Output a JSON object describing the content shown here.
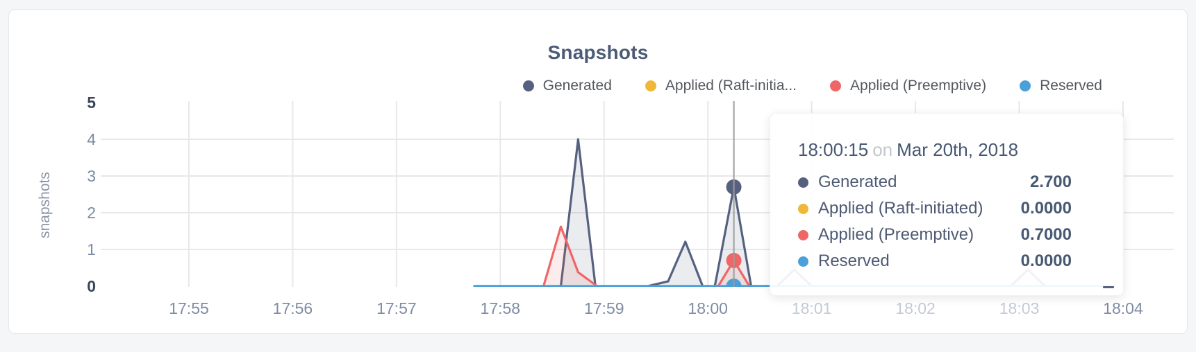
{
  "title": "Snapshots",
  "legend": [
    {
      "label": "Generated",
      "color": "#566180"
    },
    {
      "label": "Applied (Raft-initia...",
      "color": "#f0b839"
    },
    {
      "label": "Applied (Preemptive)",
      "color": "#ee6666"
    },
    {
      "label": "Reserved",
      "color": "#4aa0d9"
    }
  ],
  "tooltip": {
    "time": "18:00:15",
    "conjunction": "on",
    "date": "Mar 20th, 2018",
    "rows": [
      {
        "label": "Generated",
        "value": "2.700",
        "color": "#566180"
      },
      {
        "label": "Applied (Raft-initiated)",
        "value": "0.0000",
        "color": "#f0b839"
      },
      {
        "label": "Applied (Preemptive)",
        "value": "0.7000",
        "color": "#ee6666"
      },
      {
        "label": "Reserved",
        "value": "0.0000",
        "color": "#4aa0d9"
      }
    ]
  },
  "chart_data": {
    "type": "area",
    "title": "Snapshots",
    "xlabel": "",
    "ylabel": "snapshots",
    "ylim": [
      0,
      5
    ],
    "y_ticks": [
      0,
      1,
      2,
      3,
      4,
      5
    ],
    "x_ticks": [
      "17:55",
      "17:56",
      "17:57",
      "17:58",
      "17:59",
      "18:00",
      "18:01",
      "18:02",
      "18:03",
      "18:04"
    ],
    "grid": true,
    "legend_position": "top-right",
    "hover": {
      "time": "18:00:15",
      "date": "Mar 20th, 2018"
    },
    "series": [
      {
        "name": "Generated",
        "color": "#566180",
        "hover_value": 2.7,
        "points": [
          [
            "17:57:45",
            0
          ],
          [
            "17:58:35",
            0
          ],
          [
            "17:58:45",
            4.0
          ],
          [
            "17:58:55",
            0
          ],
          [
            "17:59:25",
            0
          ],
          [
            "17:59:37",
            0.13
          ],
          [
            "17:59:47",
            1.21
          ],
          [
            "17:59:57",
            0
          ],
          [
            "18:00:04",
            0
          ],
          [
            "18:00:15",
            2.7
          ],
          [
            "18:00:25",
            0
          ],
          [
            "18:00:40",
            0
          ],
          [
            "18:00:50",
            0.45
          ],
          [
            "18:01:00",
            0
          ],
          [
            "18:02:55",
            0
          ],
          [
            "18:03:05",
            0.45
          ],
          [
            "18:03:15",
            0
          ],
          [
            "18:03:55",
            0
          ]
        ]
      },
      {
        "name": "Applied (Raft-initiated)",
        "color": "#f0b839",
        "hover_value": 0,
        "points": [
          [
            "17:57:45",
            0
          ],
          [
            "18:03:55",
            0
          ]
        ]
      },
      {
        "name": "Applied (Preemptive)",
        "color": "#ee6666",
        "hover_value": 0.7,
        "points": [
          [
            "17:57:45",
            0
          ],
          [
            "17:58:25",
            0
          ],
          [
            "17:58:35",
            1.62
          ],
          [
            "17:58:45",
            0.38
          ],
          [
            "17:58:56",
            0
          ],
          [
            "18:00:06",
            0
          ],
          [
            "18:00:15",
            0.7
          ],
          [
            "18:00:24",
            0
          ],
          [
            "18:03:55",
            0
          ]
        ]
      },
      {
        "name": "Reserved",
        "color": "#4aa0d9",
        "hover_value": 0,
        "points": [
          [
            "17:57:45",
            0
          ],
          [
            "18:03:55",
            0
          ]
        ]
      }
    ]
  }
}
